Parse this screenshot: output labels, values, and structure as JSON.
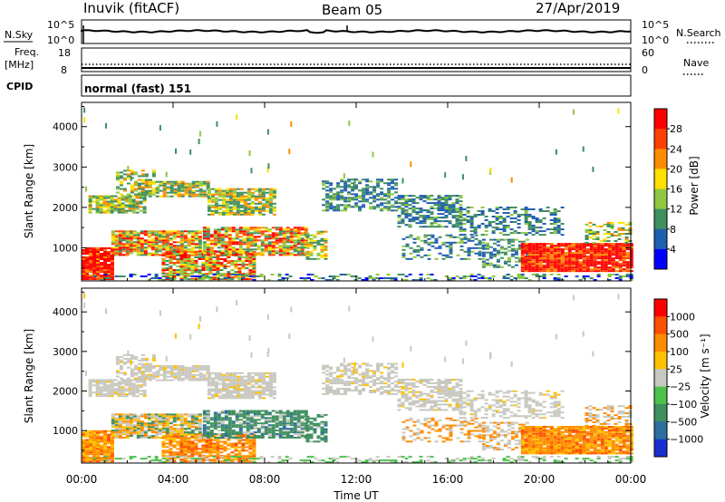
{
  "header": {
    "station": "Inuvik (fitACF)",
    "beam": "Beam 05",
    "date": "27/Apr/2019"
  },
  "strips": {
    "nsky_label": "N.Sky",
    "nsky_ticks": [
      "10^5",
      "10^0"
    ],
    "nsearch_label": "N.Search",
    "nsearch_ticks": [
      "10^5",
      "10^0"
    ],
    "freq_label_1": "Freq.",
    "freq_label_2": "[MHz]",
    "freq_ticks": [
      "18",
      "8"
    ],
    "nave_label": "Nave",
    "nave_ticks": [
      "60",
      "0"
    ],
    "cpid_label": "CPID",
    "cpid_value": "normal (fast) 151"
  },
  "chart_data": [
    {
      "type": "heatmap",
      "name": "power-panel",
      "ylabel": "Slant Range [km]",
      "yticks": [
        1000,
        2000,
        3000,
        4000
      ],
      "ylim": [
        180,
        4600
      ],
      "xticks": [
        "00:00",
        "04:00",
        "08:00",
        "12:00",
        "16:00",
        "20:00",
        "00:00"
      ],
      "xlim_hours": [
        0,
        24
      ],
      "colorbar": {
        "label": "Power [dB]",
        "ticks": [
          "4",
          "8",
          "12",
          "16",
          "20",
          "24",
          "28"
        ],
        "colors": [
          "#0000ff",
          "#1f5fb0",
          "#3f8f5f",
          "#8fc840",
          "#ffe000",
          "#ff8c00",
          "#ff4000",
          "#ff0000"
        ]
      }
    },
    {
      "type": "heatmap",
      "name": "velocity-panel",
      "ylabel": "Slant Range [km]",
      "yticks": [
        1000,
        2000,
        3000,
        4000
      ],
      "ylim": [
        180,
        4600
      ],
      "xticks": [
        "00:00",
        "04:00",
        "08:00",
        "12:00",
        "16:00",
        "20:00",
        "00:00"
      ],
      "xlim_hours": [
        0,
        24
      ],
      "xlabel": "Time UT",
      "colorbar": {
        "label": "Velocity [m s⁻¹]",
        "ticks": [
          "1000",
          "500",
          "100",
          "25",
          "−25",
          "−100",
          "−500",
          "−1000"
        ],
        "colors": [
          "#1a2fd0",
          "#2c6f9f",
          "#3f8f5f",
          "#4cc24c",
          "#c8c8c0",
          "#ffc000",
          "#ff8c00",
          "#ff5000",
          "#ff0000"
        ]
      }
    }
  ]
}
